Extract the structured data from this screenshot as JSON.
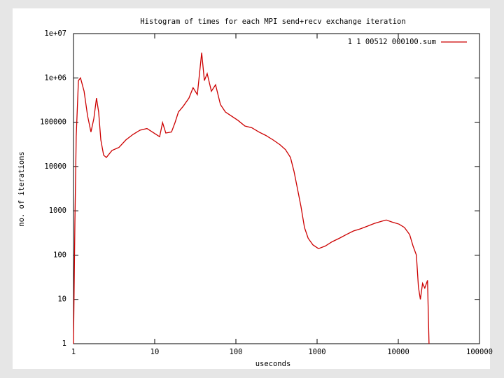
{
  "chart_data": {
    "type": "line",
    "title": "Histogram of times for each MPI send+recv exchange iteration",
    "x_label": "useconds",
    "y_label": "no. of iterations",
    "x_log": true,
    "y_log": true,
    "xlim": [
      1,
      100000
    ],
    "ylim": [
      1,
      10000000
    ],
    "xticks": [
      1,
      10,
      100,
      1000,
      10000,
      100000
    ],
    "yticks": [
      1,
      10,
      100,
      1000,
      10000,
      100000,
      {
        "value": 1000000,
        "label": "1e+06"
      },
      {
        "value": 10000000,
        "label": "1e+07"
      }
    ],
    "legend": "upper right",
    "x": [
      1,
      1.04,
      1.08,
      1.15,
      1.22,
      1.35,
      1.49,
      1.64,
      1.78,
      1.92,
      2.04,
      2.17,
      2.35,
      2.54,
      2.98,
      3.63,
      4.43,
      5.41,
      6.59,
      8.03,
      9.8,
      11.5,
      12.5,
      13.7,
      16.1,
      17.8,
      19.6,
      22.5,
      26.4,
      29.7,
      33.5,
      37.9,
      40.9,
      44.3,
      49.9,
      56.2,
      64.5,
      74.3,
      87,
      106,
      129,
      157,
      192,
      235,
      286,
      349,
      408,
      470,
      520,
      574,
      633,
      699,
      776,
      889,
      1040,
      1260,
      1530,
      1880,
      2280,
      2800,
      3400,
      4160,
      5090,
      6220,
      7100,
      8330,
      10200,
      11900,
      13800,
      15200,
      16700,
      17700,
      18700,
      19900,
      21200,
      22900,
      23900
    ],
    "series": [
      {
        "name": "1 1 00512 000100.sum",
        "color": "#cc0000",
        "values": [
          1,
          500,
          48000,
          870000,
          1000000,
          500000,
          140000,
          60000,
          120000,
          350000,
          170000,
          40000,
          18000,
          16000,
          23000,
          27000,
          40000,
          53000,
          66000,
          72000,
          57000,
          47000,
          98000,
          57000,
          60000,
          98000,
          170000,
          230000,
          350000,
          600000,
          420000,
          3700000,
          870000,
          1250000,
          500000,
          700000,
          250000,
          170000,
          140000,
          110000,
          82000,
          75000,
          60000,
          50000,
          40000,
          31000,
          24000,
          16000,
          7700,
          3100,
          1250,
          420,
          240,
          170,
          140,
          160,
          200,
          240,
          290,
          350,
          390,
          450,
          520,
          580,
          620,
          560,
          500,
          420,
          290,
          160,
          100,
          19,
          10,
          23,
          18,
          27,
          1
        ]
      }
    ]
  }
}
